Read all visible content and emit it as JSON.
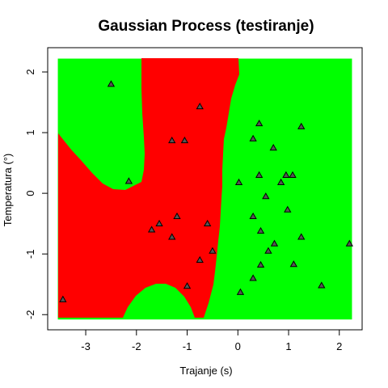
{
  "chart_data": {
    "type": "scatter",
    "title": "Gaussian Process (testiranje)",
    "xlabel": "Trajanje (s)",
    "ylabel": "Temperatura (°)",
    "xlim": [
      -3.75,
      2.45
    ],
    "ylim": [
      -2.25,
      2.4
    ],
    "xticks": [
      -3,
      -2,
      -1,
      0,
      1,
      2
    ],
    "yticks": [
      -2,
      -1,
      0,
      1,
      2
    ],
    "grid": false,
    "background_regions": {
      "class_a_color": "#ff0000",
      "class_b_color": "#00ff00",
      "x_range": [
        -3.55,
        2.25
      ],
      "y_range": [
        -2.08,
        2.22
      ]
    },
    "points": {
      "marker": "triangle",
      "fill_color": "#555555",
      "x": [
        -3.45,
        -2.5,
        -2.15,
        -1.7,
        -1.55,
        -1.3,
        -1.3,
        -1.2,
        -1.05,
        -1.0,
        -0.75,
        -0.75,
        -0.6,
        -0.5,
        0.02,
        0.05,
        0.3,
        0.3,
        0.3,
        0.42,
        0.42,
        0.45,
        0.45,
        0.55,
        0.6,
        0.7,
        0.72,
        0.85,
        0.95,
        0.98,
        1.08,
        1.1,
        1.25,
        1.25,
        1.65,
        2.2
      ],
      "y": [
        -1.75,
        1.8,
        0.2,
        -0.6,
        -0.5,
        0.87,
        -0.72,
        -0.38,
        0.87,
        -1.53,
        1.43,
        -1.1,
        -0.5,
        -0.95,
        0.18,
        -1.63,
        0.9,
        -0.38,
        -1.4,
        1.15,
        0.3,
        -0.62,
        -1.18,
        -0.05,
        -0.95,
        0.75,
        -0.83,
        0.18,
        0.3,
        -0.27,
        0.3,
        -1.17,
        1.1,
        -0.72,
        -1.52,
        -0.83
      ]
    }
  }
}
